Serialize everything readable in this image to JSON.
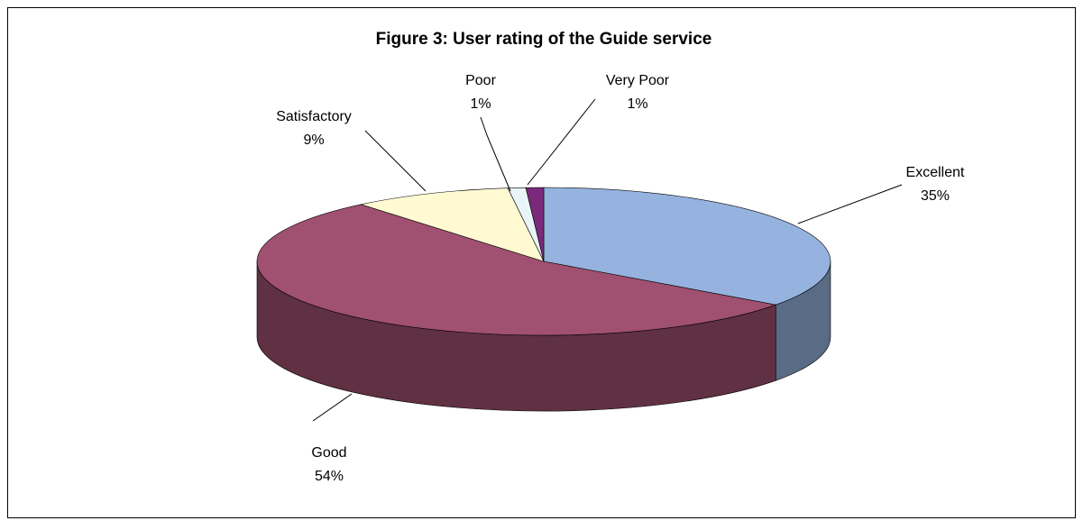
{
  "chart_data": {
    "type": "pie",
    "title": "Figure 3:  User rating of the Guide service",
    "categories": [
      "Excellent",
      "Good",
      "Satisfactory",
      "Poor",
      "Very Poor"
    ],
    "values": [
      35,
      54,
      9,
      1,
      1
    ],
    "value_labels": [
      "35%",
      "54%",
      "9%",
      "1%",
      "1%"
    ],
    "colors": [
      "#95b3de",
      "#a05070",
      "#fffad2",
      "#e8f4f8",
      "#7a2a7a"
    ]
  }
}
